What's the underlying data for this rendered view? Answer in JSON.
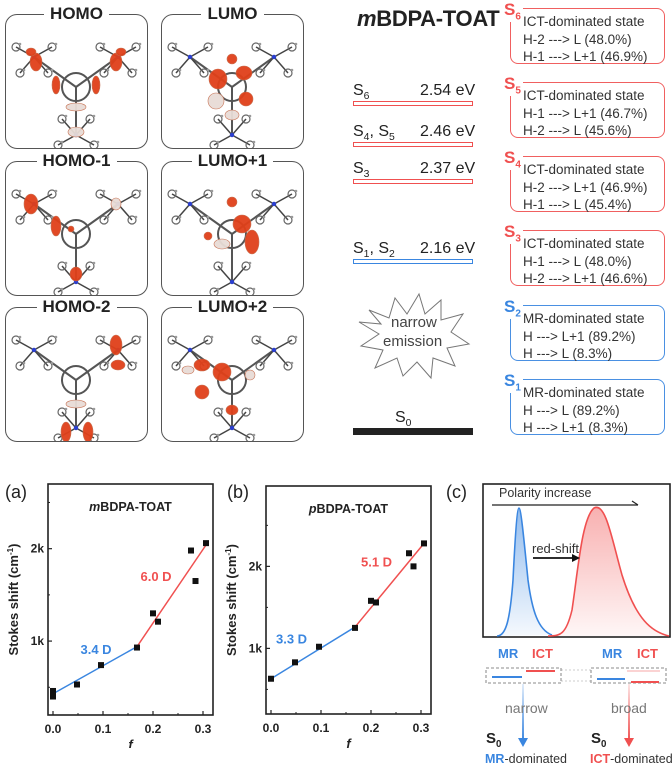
{
  "orbitals": [
    {
      "label": "HOMO"
    },
    {
      "label": "LUMO"
    },
    {
      "label": "HOMO-1"
    },
    {
      "label": "LUMO+1"
    },
    {
      "label": "HOMO-2"
    },
    {
      "label": "LUMO+2"
    }
  ],
  "energy_diagram": {
    "title_italic": "m",
    "title_rest": "BDPA-TOAT",
    "levels": [
      {
        "state": "S",
        "sub": "6",
        "state2": "",
        "sub2": "",
        "energy": "2.54 eV",
        "type": "ICT"
      },
      {
        "state": "S",
        "sub": "4",
        "state2": ", S",
        "sub2": "5",
        "energy": "2.46 eV",
        "type": "ICT"
      },
      {
        "state": "S",
        "sub": "3",
        "state2": "",
        "sub2": "",
        "energy": "2.37 eV",
        "type": "ICT"
      },
      {
        "state": "S",
        "sub": "1",
        "state2": ", S",
        "sub2": "2",
        "energy": "2.16 eV",
        "type": "MR"
      }
    ],
    "ground": {
      "state": "S",
      "sub": "0"
    },
    "starburst_line1": "narrow",
    "starburst_line2": "emission",
    "states": [
      {
        "tag": "S",
        "sub": "6",
        "type": "ICT",
        "title": "ICT-dominated state",
        "t1": "H-2 ---> L (48.0%)",
        "t2": "H-1 ---> L+1 (46.9%)"
      },
      {
        "tag": "S",
        "sub": "5",
        "type": "ICT",
        "title": "ICT-dominated state",
        "t1": "H-1 ---> L+1 (46.7%)",
        "t2": "H-2 ---> L (45.6%)"
      },
      {
        "tag": "S",
        "sub": "4",
        "type": "ICT",
        "title": "ICT-dominated state",
        "t1": "H-2 ---> L+1 (46.9%)",
        "t2": "H-1 ---> L (45.4%)"
      },
      {
        "tag": "S",
        "sub": "3",
        "type": "ICT",
        "title": "ICT-dominated state",
        "t1": "H-1 ---> L (48.0%)",
        "t2": "H-2 ---> L+1 (46.6%)"
      },
      {
        "tag": "S",
        "sub": "2",
        "type": "MR",
        "title": "MR-dominated state",
        "t1": "H ---> L+1 (89.2%)",
        "t2": "H ---> L (8.3%)"
      },
      {
        "tag": "S",
        "sub": "1",
        "type": "MR",
        "title": "MR-dominated state",
        "t1": "H ---> L (89.2%)",
        "t2": "H ---> L+1 (8.3%)"
      }
    ]
  },
  "colors": {
    "ict": "#f05050",
    "mr": "#3a86e0",
    "orbital_pos": "#e0401a",
    "orbital_neg": "#e8dcd6"
  },
  "chart_data": [
    {
      "panel": "(a)",
      "type": "scatter",
      "title_italic": "m",
      "title_rest": "BDPA-TOAT",
      "xlabel": "f",
      "ylabel": "Stokes shift (cm",
      "ylabel_sup": "-1",
      "ylabel_end": ")",
      "xlim": [
        -0.01,
        0.32
      ],
      "ylim": [
        200,
        2700
      ],
      "xticks": [
        0.0,
        0.1,
        0.2,
        0.3
      ],
      "xtick_labels": [
        "0.0",
        "0.1",
        "0.2",
        "0.3"
      ],
      "yticks": [
        1000,
        2000
      ],
      "ytick_labels": [
        "1k",
        "2k"
      ],
      "yminor": [
        500,
        1500,
        2500
      ],
      "points": [
        [
          0.0,
          460
        ],
        [
          0.0,
          400
        ],
        [
          0.048,
          530
        ],
        [
          0.096,
          740
        ],
        [
          0.168,
          930
        ],
        [
          0.2,
          1300
        ],
        [
          0.21,
          1210
        ],
        [
          0.276,
          1980
        ],
        [
          0.285,
          1650
        ],
        [
          0.306,
          2060
        ]
      ],
      "fits": [
        {
          "name": "3.4 D",
          "color": "#3a86e0",
          "x": [
            0.0,
            0.168
          ],
          "y": [
            430,
            940
          ]
        },
        {
          "name": "6.0 D",
          "color": "#f05050",
          "x": [
            0.168,
            0.306
          ],
          "y": [
            940,
            2040
          ]
        }
      ],
      "annotations": [
        {
          "text": "3.4 D",
          "x": 0.055,
          "y": 860,
          "color": "#3a86e0"
        },
        {
          "text": "6.0 D",
          "x": 0.175,
          "y": 1650,
          "color": "#f05050"
        }
      ]
    },
    {
      "panel": "(b)",
      "type": "scatter",
      "title_italic": "p",
      "title_rest": "BDPA-TOAT",
      "xlabel": "f",
      "ylabel": "Stokes shift (cm",
      "ylabel_sup": "-1",
      "ylabel_end": ")",
      "xlim": [
        -0.01,
        0.32
      ],
      "ylim": [
        200,
        2980
      ],
      "xticks": [
        0.0,
        0.1,
        0.2,
        0.3
      ],
      "xtick_labels": [
        "0.0",
        "0.1",
        "0.2",
        "0.3"
      ],
      "yticks": [
        1000,
        2000
      ],
      "ytick_labels": [
        "1k",
        "2k"
      ],
      "yminor": [
        500,
        1500,
        2500
      ],
      "points": [
        [
          0.0,
          630
        ],
        [
          0.048,
          830
        ],
        [
          0.096,
          1020
        ],
        [
          0.168,
          1250
        ],
        [
          0.2,
          1580
        ],
        [
          0.21,
          1560
        ],
        [
          0.276,
          2160
        ],
        [
          0.285,
          2000
        ],
        [
          0.306,
          2280
        ]
      ],
      "fits": [
        {
          "name": "3.3 D",
          "color": "#3a86e0",
          "x": [
            0.0,
            0.168
          ],
          "y": [
            630,
            1260
          ]
        },
        {
          "name": "5.1 D",
          "color": "#f05050",
          "x": [
            0.168,
            0.306
          ],
          "y": [
            1260,
            2280
          ]
        }
      ],
      "annotations": [
        {
          "text": "3.3 D",
          "x": 0.01,
          "y": 1060,
          "color": "#3a86e0"
        },
        {
          "text": "5.1 D",
          "x": 0.18,
          "y": 2000,
          "color": "#f05050"
        }
      ]
    }
  ],
  "panel_c": {
    "panel": "(c)",
    "polarity": "Polarity increase",
    "redshift": "red-shift",
    "mr": "MR",
    "ict": "ICT",
    "narrow": "narrow",
    "broad": "broad",
    "s0": "S",
    "s0_sub": "0",
    "left_caption_colored": "MR",
    "right_caption_colored": "ICT",
    "caption_rest": "-dominated"
  }
}
